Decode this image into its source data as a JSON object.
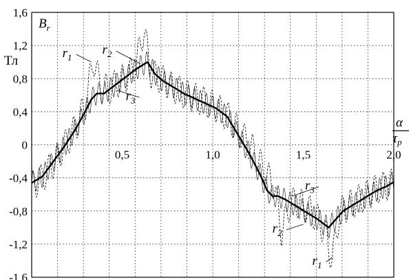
{
  "chart_data": {
    "type": "line",
    "xlim": [
      0,
      2.0
    ],
    "ylim": [
      -1.6,
      1.6
    ],
    "grid": true,
    "y_ticks": [
      {
        "v": 1.6,
        "label": "1,6"
      },
      {
        "v": 1.2,
        "label": "1,2"
      },
      {
        "v": 0.8,
        "label": "0,8"
      },
      {
        "v": 0.4,
        "label": "0,4"
      },
      {
        "v": 0,
        "label": "0"
      },
      {
        "v": -0.4,
        "label": "-0,4"
      },
      {
        "v": -0.8,
        "label": "-0,8"
      },
      {
        "v": -1.2,
        "label": "-1,2"
      },
      {
        "v": -1.6,
        "label": "-1,6"
      }
    ],
    "x_ticks": [
      {
        "v": 0.5,
        "label": "0,5"
      },
      {
        "v": 1.0,
        "label": "1,0"
      },
      {
        "v": 1.5,
        "label": "1,5"
      },
      {
        "v": 2.0,
        "label": "2,0"
      }
    ],
    "ylabel": {
      "symbol": "B",
      "sub": "r",
      "unit": "Тл"
    },
    "xlabel": {
      "numerator": "α",
      "denominator": "τ",
      "den_sub": "p"
    },
    "series": [
      {
        "name": "r1",
        "style": "dashed",
        "x": [
          0,
          0.06,
          0.12,
          0.18,
          0.24,
          0.3,
          0.34,
          0.38,
          0.43,
          0.48,
          0.54,
          0.58,
          0.62,
          0.66,
          0.7,
          0.76,
          0.84,
          0.92,
          1.0,
          1.08,
          1.16,
          1.22,
          1.28,
          1.34,
          1.38,
          1.43,
          1.48,
          1.54,
          1.58,
          1.62,
          1.66,
          1.7,
          1.76,
          1.84,
          1.92,
          2.0
        ],
        "y": [
          -0.5,
          -0.4,
          -0.22,
          -0.02,
          0.2,
          0.5,
          1.04,
          0.7,
          0.67,
          0.76,
          0.85,
          1.0,
          1.4,
          0.85,
          0.82,
          0.72,
          0.62,
          0.55,
          0.48,
          0.35,
          0.12,
          -0.05,
          -0.3,
          -0.5,
          -1.05,
          -0.7,
          -0.7,
          -0.8,
          -0.9,
          -1.05,
          -1.4,
          -0.82,
          -0.72,
          -0.62,
          -0.52,
          -0.46
        ]
      },
      {
        "name": "r2",
        "style": "solid-bold",
        "x": [
          0,
          0.06,
          0.12,
          0.18,
          0.24,
          0.3,
          0.33,
          0.36,
          0.4,
          0.46,
          0.52,
          0.58,
          0.64,
          0.68,
          0.72,
          0.78,
          0.84,
          0.9,
          0.96,
          1.02,
          1.08,
          1.14,
          1.2,
          1.26,
          1.3,
          1.33,
          1.36,
          1.4,
          1.46,
          1.52,
          1.58,
          1.64,
          1.68,
          1.72,
          1.78,
          1.84,
          1.9,
          1.96,
          2.0
        ],
        "y": [
          -0.46,
          -0.38,
          -0.2,
          -0.02,
          0.18,
          0.42,
          0.55,
          0.62,
          0.62,
          0.72,
          0.82,
          0.92,
          1.0,
          0.86,
          0.78,
          0.7,
          0.62,
          0.56,
          0.5,
          0.44,
          0.34,
          0.12,
          -0.1,
          -0.35,
          -0.55,
          -0.62,
          -0.62,
          -0.66,
          -0.74,
          -0.82,
          -0.9,
          -1.0,
          -0.9,
          -0.8,
          -0.72,
          -0.64,
          -0.56,
          -0.5,
          -0.45
        ]
      },
      {
        "name": "r3",
        "style": "thin-oscillating",
        "x": [
          0,
          0.06,
          0.12,
          0.18,
          0.24,
          0.3,
          0.33,
          0.36,
          0.4,
          0.46,
          0.52,
          0.58,
          0.64,
          0.68,
          0.72,
          0.78,
          0.84,
          0.9,
          0.96,
          1.02,
          1.08,
          1.14,
          1.2,
          1.26,
          1.3,
          1.33,
          1.36,
          1.4,
          1.46,
          1.52,
          1.58,
          1.64,
          1.68,
          1.72,
          1.78,
          1.84,
          1.9,
          1.96,
          2.0
        ],
        "y": [
          -0.46,
          -0.38,
          -0.2,
          -0.02,
          0.18,
          0.42,
          0.55,
          0.62,
          0.62,
          0.72,
          0.82,
          0.92,
          1.0,
          0.86,
          0.78,
          0.7,
          0.62,
          0.56,
          0.5,
          0.44,
          0.34,
          0.12,
          -0.1,
          -0.35,
          -0.55,
          -0.62,
          -0.62,
          -0.66,
          -0.74,
          -0.82,
          -0.9,
          -1.0,
          -0.9,
          -0.8,
          -0.72,
          -0.64,
          -0.56,
          -0.5,
          -0.45
        ],
        "oscillation_amplitude": 0.13,
        "oscillation_period": 0.033
      }
    ],
    "annotations": [
      {
        "series": "r1",
        "symbol": "r",
        "sub": "1",
        "x": 0.2,
        "y": 1.06,
        "point_x": 0.33,
        "point_y": 1.0
      },
      {
        "series": "r2",
        "symbol": "r",
        "sub": "2",
        "x": 0.42,
        "y": 1.1,
        "point_x": 0.6,
        "point_y": 0.98
      },
      {
        "series": "r3",
        "symbol": "r",
        "sub": "3",
        "x": 0.55,
        "y": 0.54,
        "point_x": 0.47,
        "point_y": 0.66
      },
      {
        "series": "r3",
        "symbol": "r",
        "sub": "3",
        "x": 1.54,
        "y": -0.54,
        "point_x": 1.44,
        "point_y": -0.62
      },
      {
        "series": "r2",
        "symbol": "r",
        "sub": "2",
        "x": 1.36,
        "y": -1.06,
        "point_x": 1.5,
        "point_y": -0.96
      },
      {
        "series": "r1",
        "symbol": "r",
        "sub": "1",
        "x": 1.58,
        "y": -1.45,
        "point_x": 1.66,
        "point_y": -1.36
      }
    ]
  }
}
